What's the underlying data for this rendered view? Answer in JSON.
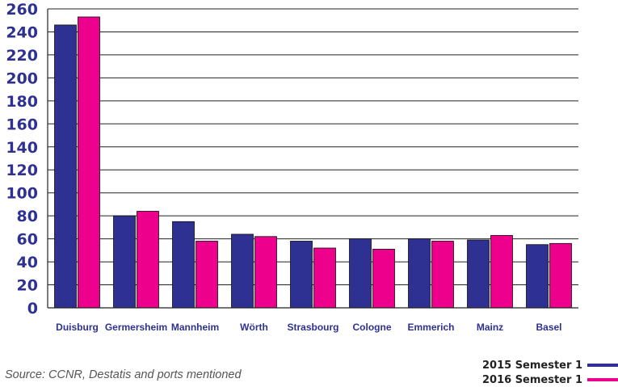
{
  "chart_data": {
    "type": "bar",
    "categories": [
      "Duisburg",
      "Germersheim",
      "Mannheim",
      "Wörth",
      "Strasbourg",
      "Cologne",
      "Emmerich",
      "Mainz",
      "Basel"
    ],
    "series": [
      {
        "name": "2015 Semester 1",
        "color": "#2e3192",
        "values": [
          246,
          80,
          75,
          64,
          58,
          60,
          60,
          59,
          55
        ]
      },
      {
        "name": "2016 Semester 1",
        "color": "#ec008c",
        "values": [
          253,
          84,
          58,
          62,
          52,
          51,
          58,
          63,
          56
        ]
      }
    ],
    "yticks": [
      0,
      20,
      40,
      60,
      80,
      100,
      120,
      140,
      160,
      180,
      200,
      220,
      240,
      260
    ],
    "ylim": [
      0,
      260
    ],
    "grid": true,
    "legend_position": "bottom-right",
    "tick_color": "#2e3192",
    "category_color": "#2e3192"
  },
  "source": "Source: CCNR, Destatis and ports mentioned"
}
